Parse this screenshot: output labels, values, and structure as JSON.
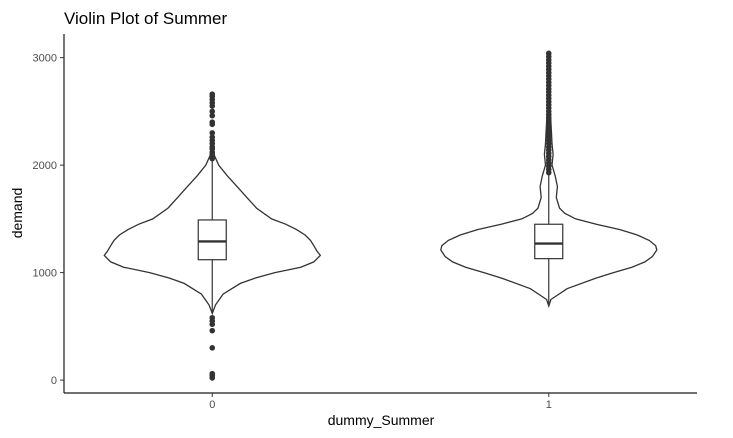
{
  "chart_data": {
    "type": "violin",
    "title": "Violin Plot of Summer",
    "xlabel": "dummy_Summer",
    "ylabel": "demand",
    "categories": [
      "0",
      "1"
    ],
    "ylim": [
      -120,
      3220
    ],
    "yticks": [
      0,
      1000,
      2000,
      3000
    ],
    "ytick_labels": [
      "0",
      "1000",
      "2000",
      "3000"
    ],
    "grid": false,
    "legend": "none",
    "colors": {
      "stroke": "#333333",
      "box_fill": "#ffffff",
      "background": "#ffffff"
    },
    "groups": [
      {
        "category": "0",
        "box": {
          "q1": 1120,
          "median": 1290,
          "q3": 1490,
          "whisker_low": 620,
          "whisker_high": 2040
        },
        "density_profile": [
          [
            620,
            0.0
          ],
          [
            700,
            0.03
          ],
          [
            800,
            0.1
          ],
          [
            900,
            0.26
          ],
          [
            950,
            0.4
          ],
          [
            1000,
            0.58
          ],
          [
            1050,
            0.82
          ],
          [
            1100,
            0.94
          ],
          [
            1160,
            1.0
          ],
          [
            1200,
            0.97
          ],
          [
            1250,
            0.94
          ],
          [
            1300,
            0.91
          ],
          [
            1350,
            0.86
          ],
          [
            1400,
            0.78
          ],
          [
            1450,
            0.68
          ],
          [
            1500,
            0.55
          ],
          [
            1600,
            0.41
          ],
          [
            1700,
            0.32
          ],
          [
            1800,
            0.23
          ],
          [
            1900,
            0.14
          ],
          [
            2000,
            0.06
          ],
          [
            2100,
            0.015
          ],
          [
            2180,
            0.0
          ]
        ],
        "violin_low": 600,
        "violin_high": 2180,
        "outliers": [
          20,
          40,
          60,
          300,
          460,
          520,
          550,
          580,
          2060,
          2080,
          2100,
          2120,
          2150,
          2170,
          2200,
          2230,
          2260,
          2300,
          2380,
          2400,
          2460,
          2500,
          2550,
          2580,
          2610,
          2640,
          2660
        ]
      },
      {
        "category": "1",
        "box": {
          "q1": 1130,
          "median": 1270,
          "q3": 1450,
          "whisker_low": 690,
          "whisker_high": 1910
        },
        "density_profile": [
          [
            690,
            0.0
          ],
          [
            750,
            0.02
          ],
          [
            850,
            0.17
          ],
          [
            950,
            0.44
          ],
          [
            1000,
            0.6
          ],
          [
            1050,
            0.77
          ],
          [
            1100,
            0.89
          ],
          [
            1150,
            0.96
          ],
          [
            1210,
            1.0
          ],
          [
            1250,
            0.99
          ],
          [
            1300,
            0.93
          ],
          [
            1350,
            0.82
          ],
          [
            1400,
            0.66
          ],
          [
            1450,
            0.44
          ],
          [
            1500,
            0.25
          ],
          [
            1550,
            0.15
          ],
          [
            1600,
            0.1
          ],
          [
            1700,
            0.07
          ],
          [
            1800,
            0.08
          ],
          [
            1900,
            0.06
          ],
          [
            2000,
            0.03
          ],
          [
            2100,
            0.04
          ],
          [
            2200,
            0.03
          ],
          [
            2300,
            0.025
          ],
          [
            2400,
            0.02
          ],
          [
            2500,
            0.015
          ],
          [
            2600,
            0.01
          ],
          [
            2700,
            0.0
          ]
        ],
        "violin_low": 690,
        "violin_high": 2700,
        "outliers": [
          1930,
          1960,
          1990,
          2020,
          2050,
          2080,
          2110,
          2140,
          2170,
          2200,
          2230,
          2260,
          2290,
          2320,
          2350,
          2380,
          2410,
          2440,
          2470,
          2500,
          2530,
          2560,
          2590,
          2620,
          2650,
          2680,
          2710,
          2740,
          2770,
          2800,
          2830,
          2860,
          2890,
          2920,
          2950,
          2980,
          3010,
          3040
        ]
      }
    ]
  }
}
